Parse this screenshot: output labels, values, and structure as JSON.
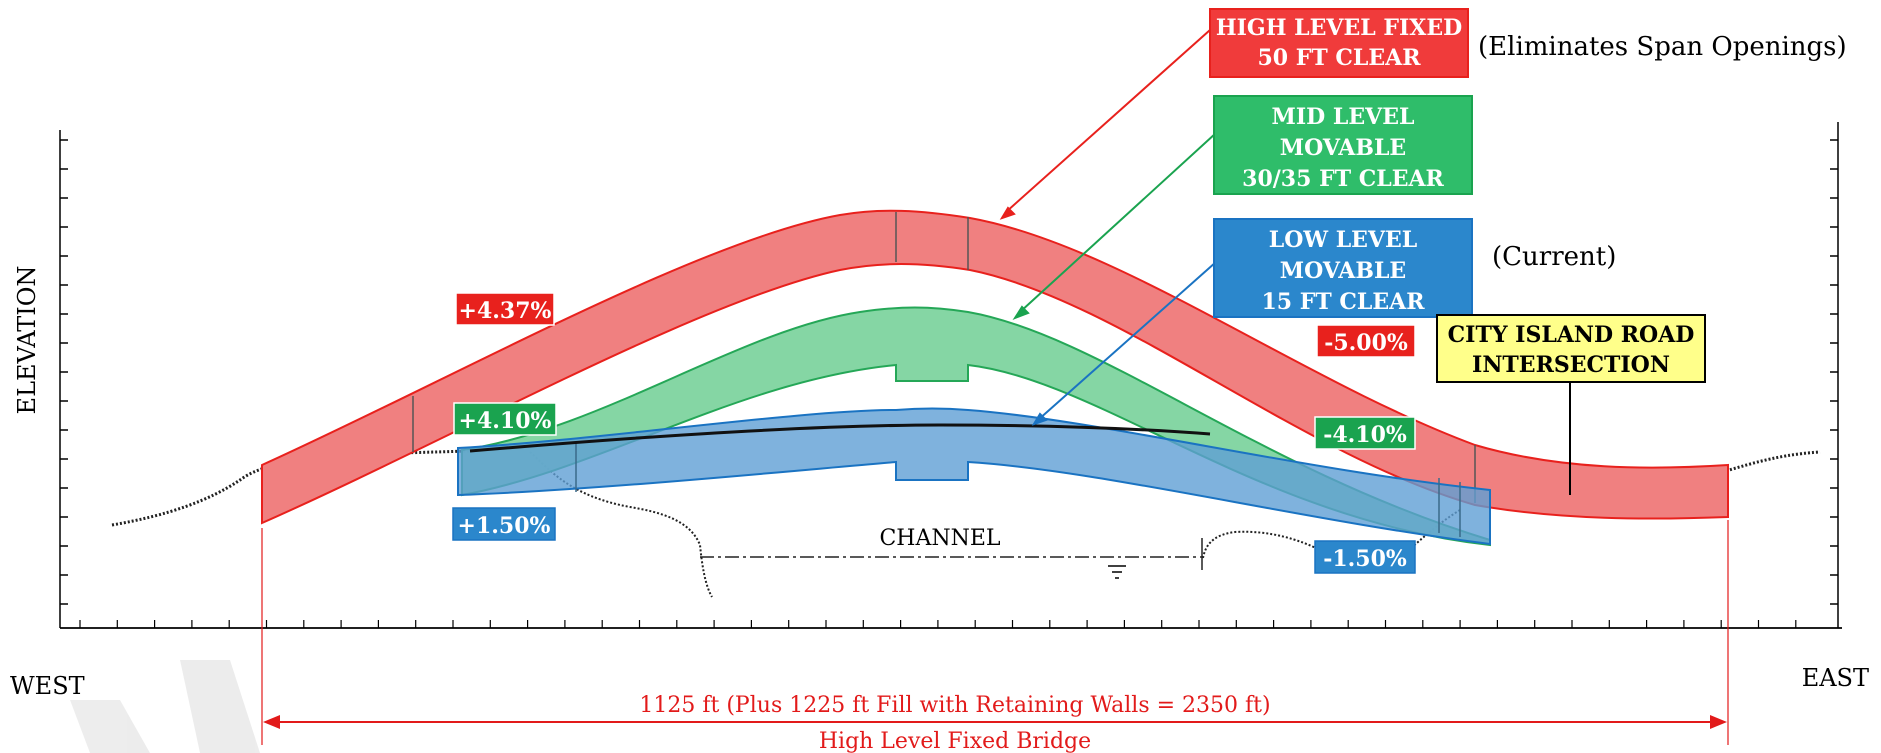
{
  "axis": {
    "y_label": "ELEVATION",
    "west_label": "WEST",
    "east_label": "EAST"
  },
  "channel_label": "CHANNEL",
  "callouts": {
    "high": {
      "lines": [
        "HIGH LEVEL FIXED",
        "50 FT CLEAR"
      ],
      "note": "(Eliminates Span Openings)"
    },
    "mid": {
      "lines": [
        "MID LEVEL",
        "MOVABLE",
        "30/35 FT CLEAR"
      ]
    },
    "low": {
      "lines": [
        "LOW LEVEL",
        "MOVABLE",
        "15 FT CLEAR"
      ],
      "note": "(Current)"
    },
    "intersection": {
      "lines": [
        "CITY ISLAND ROAD",
        "INTERSECTION"
      ]
    }
  },
  "grades": {
    "high_west": "+4.37%",
    "high_east": "-5.00%",
    "mid_west": "+4.10%",
    "mid_east": "-4.10%",
    "low_west": "+1.50%",
    "low_east": "-1.50%"
  },
  "dimension": {
    "line1": "1125 ft (Plus 1225 ft Fill with Retaining Walls = 2350 ft)",
    "line2": "High Level Fixed Bridge"
  },
  "colors": {
    "high_fill": "#f08080",
    "high_stroke": "#e8211d",
    "mid_fill": "#7fd4a0",
    "mid_stroke": "#1aa34f",
    "low_fill": "#6aa6d8",
    "low_stroke": "#1a73c2",
    "intersection_fill": "#ffff8a",
    "dimension": "#e21a1a"
  }
}
